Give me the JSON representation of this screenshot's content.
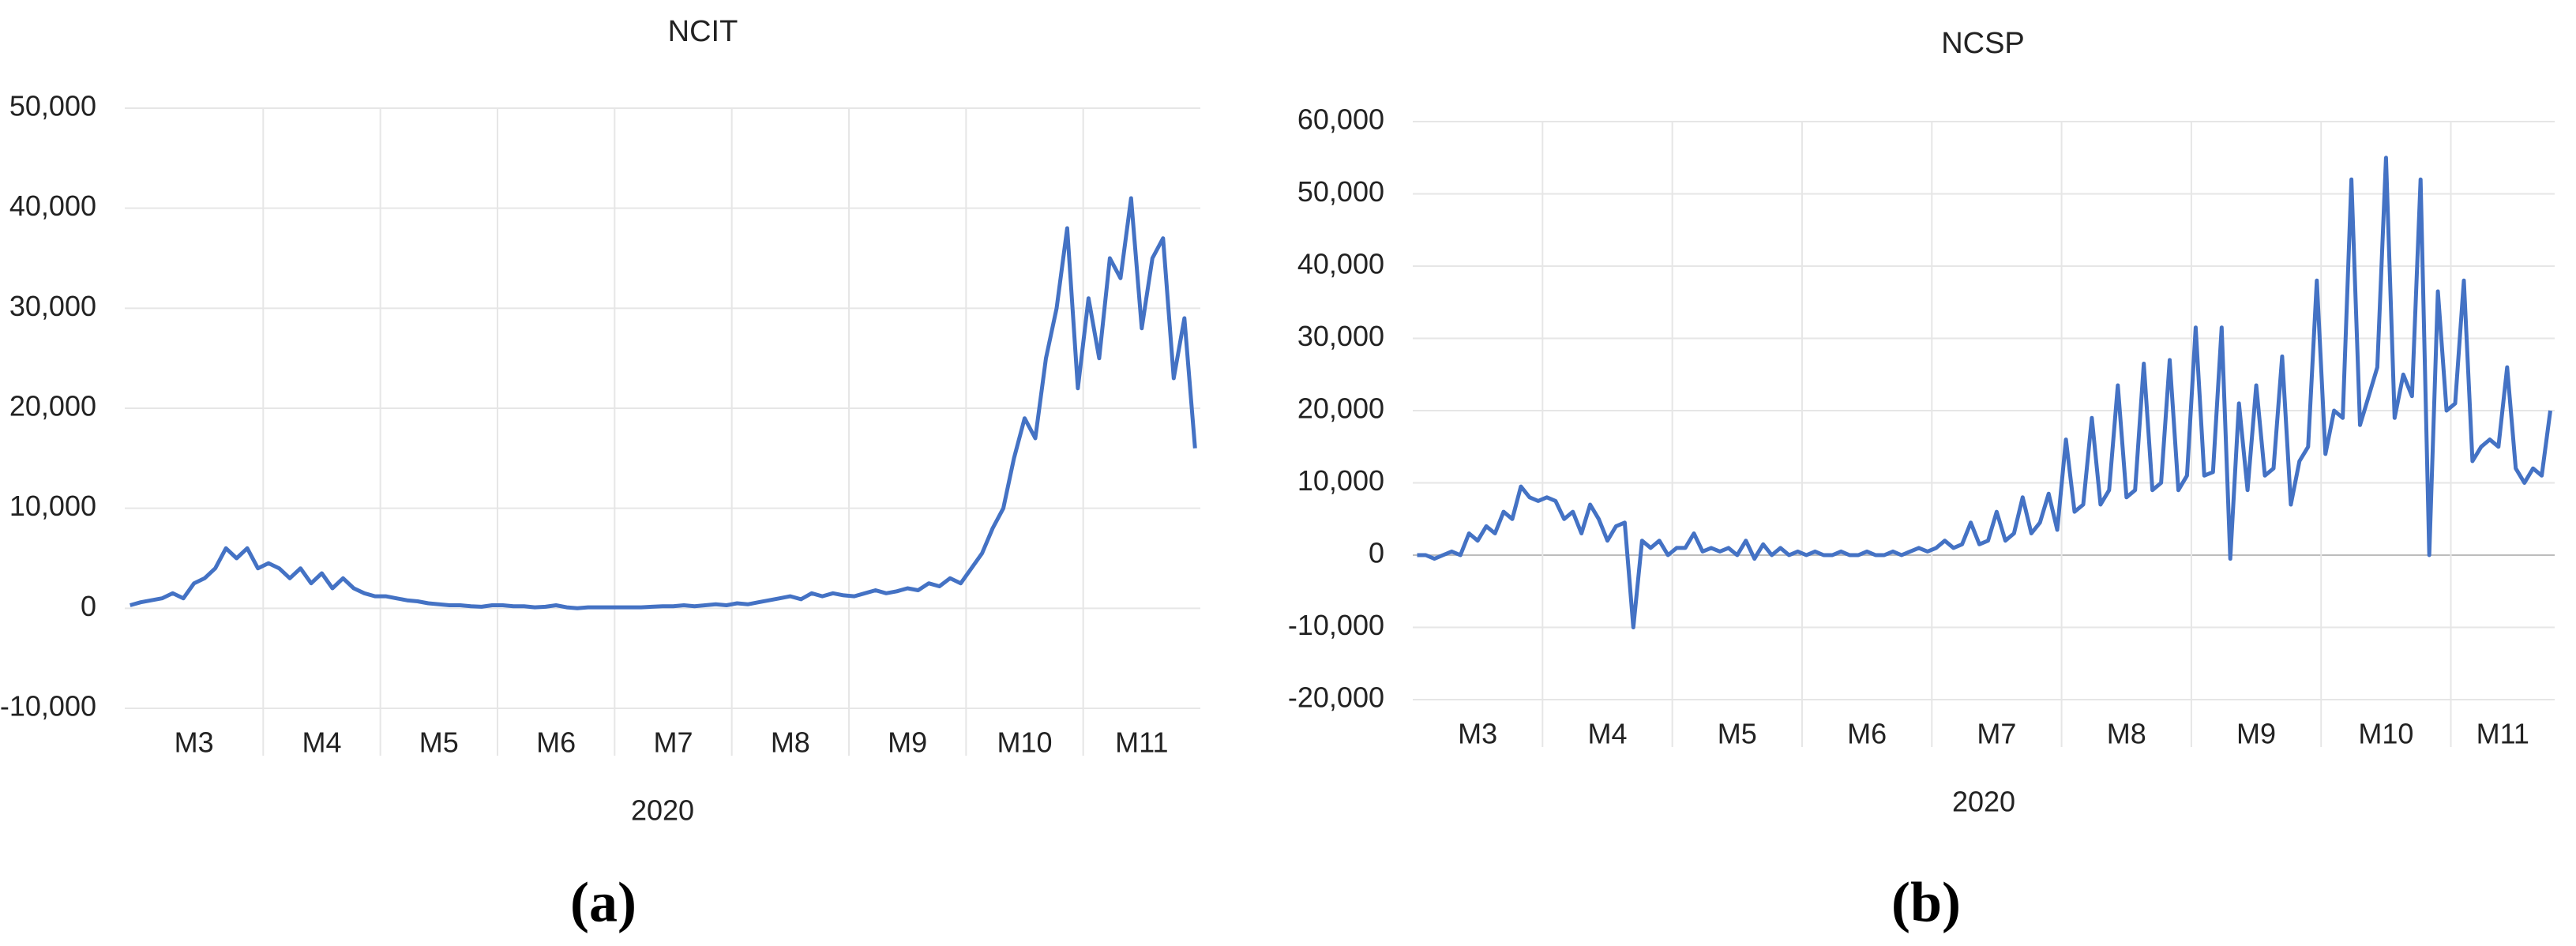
{
  "chart_data": [
    {
      "type": "line",
      "title": "NCIT",
      "panel_label": "(a)",
      "x_label": "2020",
      "color": "#4472c4",
      "grid": true,
      "ylim": [
        -10000,
        50000
      ],
      "yticks": [
        {
          "value": -10000,
          "label": "-10,000"
        },
        0,
        {
          "value": 10000,
          "label": "10,000"
        },
        {
          "value": 20000,
          "label": "20,000"
        },
        {
          "value": 30000,
          "label": "30,000"
        },
        {
          "value": 40000,
          "label": "40,000"
        },
        {
          "value": 50000,
          "label": "50,000"
        }
      ],
      "months": [
        {
          "label": "M3",
          "values": [
            300,
            600,
            800,
            1000,
            1500,
            1000,
            2500,
            3000,
            4000,
            6000,
            5000,
            6000,
            4000
          ]
        },
        {
          "label": "M4",
          "values": [
            4500,
            4000,
            3000,
            4000,
            2500,
            3500,
            2000,
            3000,
            2000,
            1500,
            1200
          ]
        },
        {
          "label": "M5",
          "values": [
            1200,
            1000,
            800,
            700,
            500,
            400,
            300,
            300,
            200,
            150,
            300
          ]
        },
        {
          "label": "M6",
          "values": [
            300,
            200,
            200,
            100,
            150,
            300,
            100,
            0,
            100,
            100,
            100
          ]
        },
        {
          "label": "M7",
          "values": [
            100,
            100,
            100,
            150,
            200,
            200,
            300,
            200,
            300,
            400,
            300
          ]
        },
        {
          "label": "M8",
          "values": [
            500,
            400,
            600,
            800,
            1000,
            1200,
            900,
            1500,
            1200,
            1500,
            1300
          ]
        },
        {
          "label": "M9",
          "values": [
            1200,
            1500,
            1800,
            1500,
            1700,
            2000,
            1800,
            2500,
            2200,
            3000,
            2500
          ]
        },
        {
          "label": "M10",
          "values": [
            4000,
            5500,
            8000,
            10000,
            15000,
            19000,
            17000,
            25000,
            30000,
            38000,
            22000
          ]
        },
        {
          "label": "M11",
          "values": [
            31000,
            25000,
            35000,
            33000,
            41000,
            28000,
            35000,
            37000,
            23000,
            29000,
            16000
          ]
        }
      ]
    },
    {
      "type": "line",
      "title": "NCSP",
      "panel_label": "(b)",
      "x_label": "2020",
      "color": "#4472c4",
      "grid": true,
      "ylim": [
        -20000,
        60000
      ],
      "yticks": [
        {
          "value": -20000,
          "label": "-20,000"
        },
        {
          "value": -10000,
          "label": "-10,000"
        },
        0,
        {
          "value": 10000,
          "label": "10,000"
        },
        {
          "value": 20000,
          "label": "20,000"
        },
        {
          "value": 30000,
          "label": "30,000"
        },
        {
          "value": 40000,
          "label": "40,000"
        },
        {
          "value": 50000,
          "label": "50,000"
        },
        {
          "value": 60000,
          "label": "60,000"
        }
      ],
      "months": [
        {
          "label": "M3",
          "values": [
            0,
            0,
            -500,
            0,
            500,
            0,
            3000,
            2000,
            4000,
            3000,
            6000,
            5000,
            9500,
            8000,
            7500
          ]
        },
        {
          "label": "M4",
          "values": [
            8000,
            7500,
            5000,
            6000,
            3000,
            7000,
            5000,
            2000,
            4000,
            4500,
            -10000,
            2000,
            1000,
            2000,
            0
          ]
        },
        {
          "label": "M5",
          "values": [
            1000,
            1000,
            3000,
            500,
            1000,
            500,
            1000,
            0,
            2000,
            -500,
            1500,
            0,
            1000,
            0,
            500
          ]
        },
        {
          "label": "M6",
          "values": [
            0,
            500,
            0,
            0,
            500,
            0,
            0,
            500,
            0,
            0,
            500,
            0,
            500,
            1000,
            500
          ]
        },
        {
          "label": "M7",
          "values": [
            1000,
            2000,
            1000,
            1500,
            4500,
            1500,
            2000,
            6000,
            2000,
            3000,
            8000,
            3000,
            4500,
            8500,
            3500
          ]
        },
        {
          "label": "M8",
          "values": [
            16000,
            6000,
            7000,
            19000,
            7000,
            9000,
            23500,
            8000,
            9000,
            26500,
            9000,
            10000,
            27000,
            9000,
            11000
          ]
        },
        {
          "label": "M9",
          "values": [
            31500,
            11000,
            11500,
            31500,
            -500,
            21000,
            9000,
            23500,
            11000,
            12000,
            27500,
            7000,
            13000,
            15000,
            38000
          ]
        },
        {
          "label": "M10",
          "values": [
            14000,
            20000,
            19000,
            52000,
            18000,
            22000,
            26000,
            55000,
            19000,
            25000,
            22000,
            52000,
            0,
            36500,
            20000
          ]
        },
        {
          "label": "M11",
          "values": [
            21000,
            38000,
            13000,
            15000,
            16000,
            15000,
            26000,
            12000,
            10000,
            12000,
            11000,
            20000
          ]
        }
      ]
    }
  ]
}
